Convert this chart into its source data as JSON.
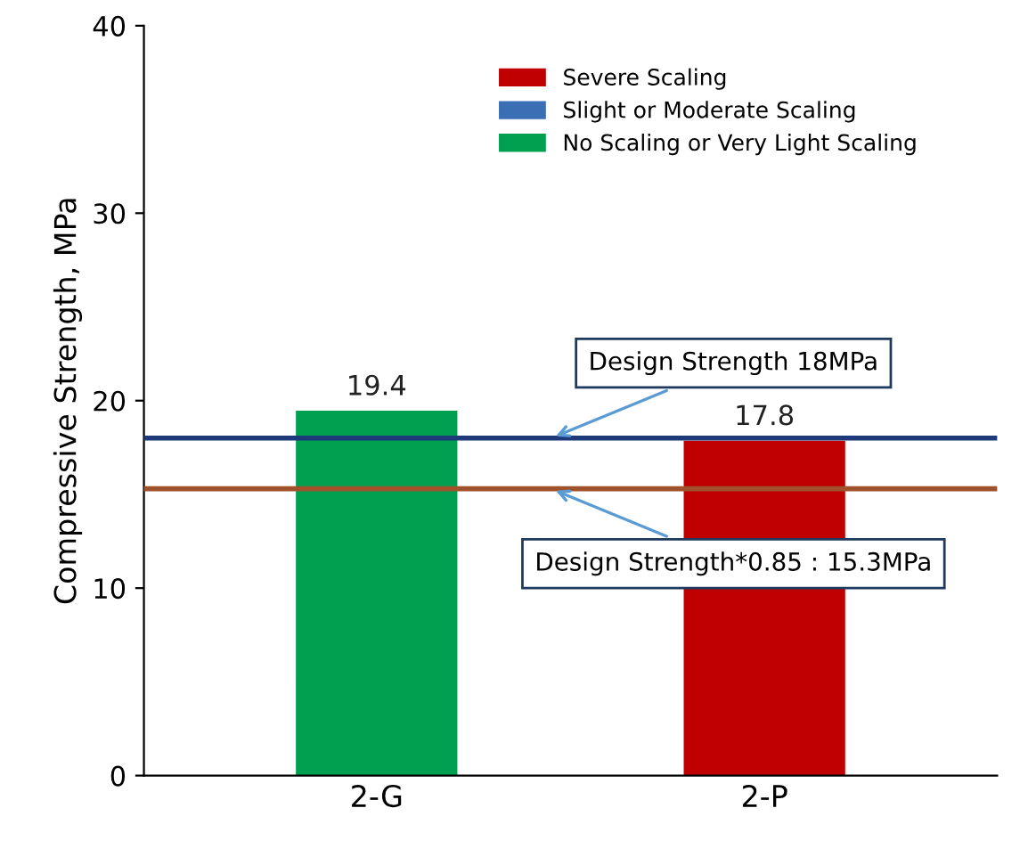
{
  "chart_data": {
    "type": "bar",
    "ylabel": "Compressive Strength, MPa",
    "categories": [
      "2-G",
      "2-P"
    ],
    "series": [
      {
        "name": "Severe Scaling",
        "color": "#c00000",
        "values": [
          null,
          17.8
        ]
      },
      {
        "name": "Slight or Moderate Scaling",
        "color": "#3a6fb5",
        "values": [
          null,
          null
        ]
      },
      {
        "name": "No Scaling or Very Light Scaling",
        "color": "#00a050",
        "values": [
          19.4,
          null
        ]
      }
    ],
    "ylim": [
      0,
      40
    ],
    "yticks": [
      0,
      10,
      20,
      30,
      40
    ],
    "grid": false,
    "legend": "top right",
    "data_labels": true,
    "ref_lines": [
      {
        "axis": "y",
        "value": 18,
        "label": "Design Strength 18MPa",
        "color": "#1f3a7a"
      },
      {
        "axis": "y",
        "value": 15.3,
        "label": "Design Strength*0.85 : 15.3MPa",
        "color": "#a0522d"
      }
    ]
  }
}
